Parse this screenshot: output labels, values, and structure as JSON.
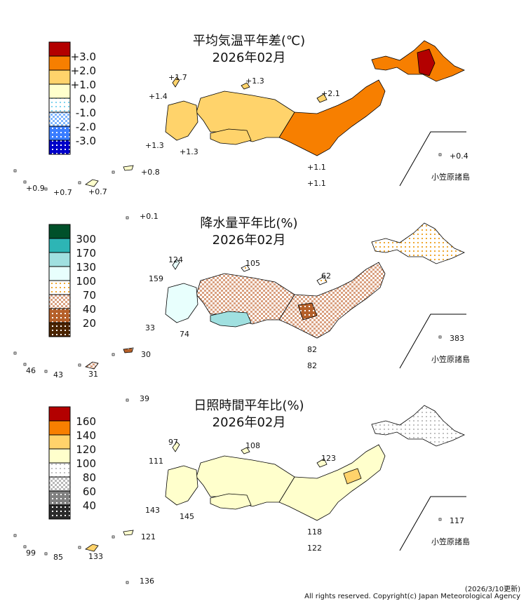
{
  "panels": [
    {
      "title": "平均気温平年差(℃)",
      "month": "2026年02月",
      "legend": [
        {
          "label": "+3.0",
          "color": "#b30000",
          "pattern": "solid"
        },
        {
          "label": "+2.0",
          "color": "#f77f00",
          "pattern": "solid"
        },
        {
          "label": "+1.0",
          "color": "#ffd36b",
          "pattern": "solid"
        },
        {
          "label": "0.0",
          "color": "#ffffcc",
          "pattern": "solid"
        },
        {
          "label": "-1.0",
          "color": "#7fd4f0",
          "pattern": "dots-light"
        },
        {
          "label": "-2.0",
          "color": "#7fb6ff",
          "pattern": "checker"
        },
        {
          "label": "-3.0",
          "color": "#3a7dff",
          "pattern": "dots-dark"
        },
        {
          "label": "",
          "color": "#0000c8",
          "pattern": "dots-dark"
        }
      ],
      "values": [
        "+1.7",
        "+1.3",
        "+1.4",
        "+2.1",
        "+1.3",
        "+1.3",
        "+0.4",
        "+1.1",
        "+1.1",
        "+0.9",
        "+0.7",
        "+0.7",
        "+0.8",
        "+0.1"
      ],
      "ogasawara_label": "小笠原諸島"
    },
    {
      "title": "降水量平年比(%)",
      "month": "2026年02月",
      "legend": [
        {
          "label": "300",
          "color": "#00502a",
          "pattern": "solid"
        },
        {
          "label": "170",
          "color": "#2db5b5",
          "pattern": "solid"
        },
        {
          "label": "130",
          "color": "#a0e0e0",
          "pattern": "solid"
        },
        {
          "label": "100",
          "color": "#e8fffd",
          "pattern": "solid"
        },
        {
          "label": "70",
          "color": "#f0a830",
          "pattern": "dots-light"
        },
        {
          "label": "40",
          "color": "#d9a080",
          "pattern": "checker"
        },
        {
          "label": "20",
          "color": "#b5602a",
          "pattern": "dots-dark"
        },
        {
          "label": "",
          "color": "#4a2400",
          "pattern": "dots-dark"
        }
      ],
      "values": [
        "124",
        "105",
        "159",
        "62",
        "33",
        "74",
        "383",
        "82",
        "82",
        "46",
        "43",
        "31",
        "30",
        "39"
      ],
      "ogasawara_label": "小笠原諸島"
    },
    {
      "title": "日照時間平年比(%)",
      "month": "2026年02月",
      "legend": [
        {
          "label": "160",
          "color": "#b30000",
          "pattern": "solid"
        },
        {
          "label": "140",
          "color": "#f77f00",
          "pattern": "solid"
        },
        {
          "label": "120",
          "color": "#ffd36b",
          "pattern": "solid"
        },
        {
          "label": "100",
          "color": "#ffffcc",
          "pattern": "solid"
        },
        {
          "label": "80",
          "color": "#c0c0c0",
          "pattern": "dots-light"
        },
        {
          "label": "60",
          "color": "#b8b8b8",
          "pattern": "checker"
        },
        {
          "label": "40",
          "color": "#808080",
          "pattern": "dots-dark"
        },
        {
          "label": "",
          "color": "#2a2a2a",
          "pattern": "dots-dark"
        }
      ],
      "values": [
        "97",
        "108",
        "111",
        "123",
        "143",
        "145",
        "117",
        "118",
        "122",
        "99",
        "85",
        "133",
        "121",
        "136"
      ],
      "ogasawara_label": "小笠原諸島"
    }
  ],
  "footer": {
    "updated": "(2026/3/10更新)",
    "copyright": "All rights reserved. Copyright(c) Japan Meteorological Agency"
  }
}
